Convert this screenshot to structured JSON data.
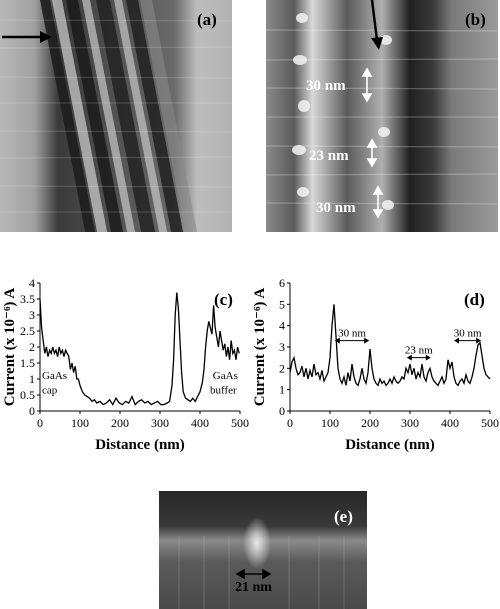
{
  "panels": {
    "a": {
      "label": "(a)"
    },
    "b": {
      "label": "(b)",
      "annotations": [
        "30 nm",
        "23 nm",
        "30 nm"
      ]
    },
    "e": {
      "label": "(e)",
      "annotation": "21 nm"
    }
  },
  "chart_data": [
    {
      "type": "line",
      "panel_label": "(c)",
      "xlabel": "Distance (nm)",
      "ylabel": "Current (x 10⁻⁶) A",
      "xlim": [
        0,
        500
      ],
      "ylim": [
        0,
        4
      ],
      "xticks": [
        0,
        100,
        200,
        300,
        400,
        500
      ],
      "yticks": [
        0,
        0.5,
        1,
        1.5,
        2,
        2.5,
        3,
        3.5,
        4
      ],
      "annotations": [
        {
          "text": "GaAs",
          "x": 5,
          "y": 1.0
        },
        {
          "text": "cap",
          "x": 5,
          "y": 0.55
        },
        {
          "text": "GaAs",
          "x": 432,
          "y": 1.0
        },
        {
          "text": "buffer",
          "x": 425,
          "y": 0.55
        }
      ],
      "x": [
        0,
        4,
        8,
        12,
        16,
        20,
        24,
        28,
        32,
        36,
        40,
        44,
        48,
        52,
        56,
        60,
        64,
        68,
        72,
        76,
        80,
        84,
        88,
        92,
        96,
        100,
        106,
        112,
        118,
        124,
        130,
        136,
        142,
        150,
        158,
        166,
        174,
        182,
        190,
        198,
        206,
        214,
        222,
        230,
        238,
        246,
        254,
        262,
        270,
        278,
        286,
        294,
        302,
        310,
        318,
        324,
        330,
        334,
        338,
        342,
        346,
        350,
        354,
        358,
        364,
        370,
        376,
        382,
        388,
        394,
        400,
        406,
        410,
        414,
        418,
        422,
        426,
        430,
        434,
        438,
        442,
        446,
        450,
        454,
        458,
        462,
        466,
        470,
        474,
        478,
        482,
        486,
        490,
        494,
        498
      ],
      "values": [
        3.5,
        2.6,
        2.2,
        1.8,
        2.0,
        1.7,
        1.9,
        1.8,
        2.0,
        1.8,
        1.9,
        1.7,
        2.0,
        1.8,
        1.9,
        1.7,
        1.9,
        1.8,
        1.7,
        1.3,
        1.5,
        1.2,
        1.4,
        1.0,
        1.0,
        0.8,
        0.6,
        0.5,
        0.45,
        0.4,
        0.3,
        0.35,
        0.25,
        0.3,
        0.2,
        0.25,
        0.35,
        0.2,
        0.4,
        0.25,
        0.2,
        0.3,
        0.25,
        0.45,
        0.2,
        0.3,
        0.35,
        0.25,
        0.3,
        0.2,
        0.25,
        0.3,
        0.2,
        0.2,
        0.25,
        0.3,
        0.8,
        1.6,
        3.0,
        3.7,
        3.2,
        2.2,
        1.2,
        0.6,
        0.4,
        0.35,
        0.3,
        0.4,
        0.3,
        0.45,
        0.6,
        0.9,
        1.3,
        2.0,
        2.5,
        2.8,
        2.6,
        2.4,
        3.3,
        2.6,
        2.3,
        2.0,
        2.5,
        2.2,
        1.9,
        2.1,
        1.7,
        2.0,
        1.6,
        2.2,
        1.8,
        1.9,
        1.6,
        2.0,
        1.8
      ]
    },
    {
      "type": "line",
      "panel_label": "(d)",
      "xlabel": "Distance (nm)",
      "ylabel": "Current (x 10⁻⁶) A",
      "xlim": [
        0,
        500
      ],
      "ylim": [
        0,
        6
      ],
      "xticks": [
        0,
        100,
        200,
        300,
        400,
        500
      ],
      "yticks": [
        0,
        1,
        2,
        3,
        4,
        5,
        6
      ],
      "annotations": [
        {
          "text": "30 nm",
          "x1": 112,
          "x2": 198,
          "y": 3.3
        },
        {
          "text": "23 nm",
          "x1": 292,
          "x2": 352,
          "y": 2.5
        },
        {
          "text": "30 nm",
          "x1": 410,
          "x2": 478,
          "y": 3.3
        }
      ],
      "x": [
        0,
        5,
        10,
        15,
        20,
        25,
        30,
        35,
        40,
        45,
        50,
        55,
        60,
        65,
        70,
        75,
        80,
        85,
        90,
        95,
        100,
        105,
        110,
        115,
        120,
        125,
        130,
        135,
        140,
        145,
        150,
        155,
        160,
        165,
        170,
        175,
        180,
        185,
        190,
        195,
        200,
        205,
        210,
        215,
        220,
        225,
        230,
        235,
        240,
        245,
        250,
        255,
        260,
        265,
        270,
        275,
        280,
        285,
        290,
        295,
        300,
        305,
        310,
        315,
        320,
        325,
        330,
        335,
        340,
        345,
        350,
        355,
        360,
        365,
        370,
        375,
        380,
        385,
        390,
        395,
        400,
        405,
        410,
        415,
        420,
        425,
        430,
        435,
        440,
        445,
        450,
        455,
        460,
        465,
        470,
        475,
        480,
        485,
        490,
        495,
        500
      ],
      "values": [
        1.8,
        2.3,
        2.5,
        2.0,
        1.7,
        1.8,
        2.1,
        1.6,
        2.0,
        1.5,
        1.9,
        1.6,
        2.2,
        1.7,
        1.8,
        1.5,
        1.9,
        1.4,
        1.6,
        1.8,
        2.5,
        4.0,
        5.0,
        3.5,
        2.0,
        1.5,
        1.3,
        1.6,
        1.2,
        1.8,
        1.4,
        2.2,
        1.6,
        1.3,
        1.2,
        1.5,
        2.0,
        1.5,
        1.3,
        1.8,
        2.9,
        2.0,
        1.5,
        1.3,
        1.2,
        1.5,
        1.3,
        1.4,
        1.2,
        1.3,
        1.5,
        1.3,
        1.6,
        1.4,
        1.3,
        1.4,
        1.6,
        1.5,
        2.0,
        1.8,
        2.2,
        1.7,
        2.0,
        1.5,
        1.8,
        1.6,
        2.2,
        1.6,
        1.4,
        1.8,
        2.0,
        1.6,
        1.4,
        1.3,
        1.2,
        1.4,
        1.6,
        1.3,
        1.5,
        2.4,
        2.0,
        2.3,
        1.6,
        1.3,
        1.2,
        1.4,
        1.5,
        1.3,
        1.7,
        1.4,
        1.3,
        1.6,
        2.0,
        2.6,
        3.1,
        3.2,
        2.6,
        2.0,
        1.7,
        1.6,
        1.5
      ]
    }
  ]
}
